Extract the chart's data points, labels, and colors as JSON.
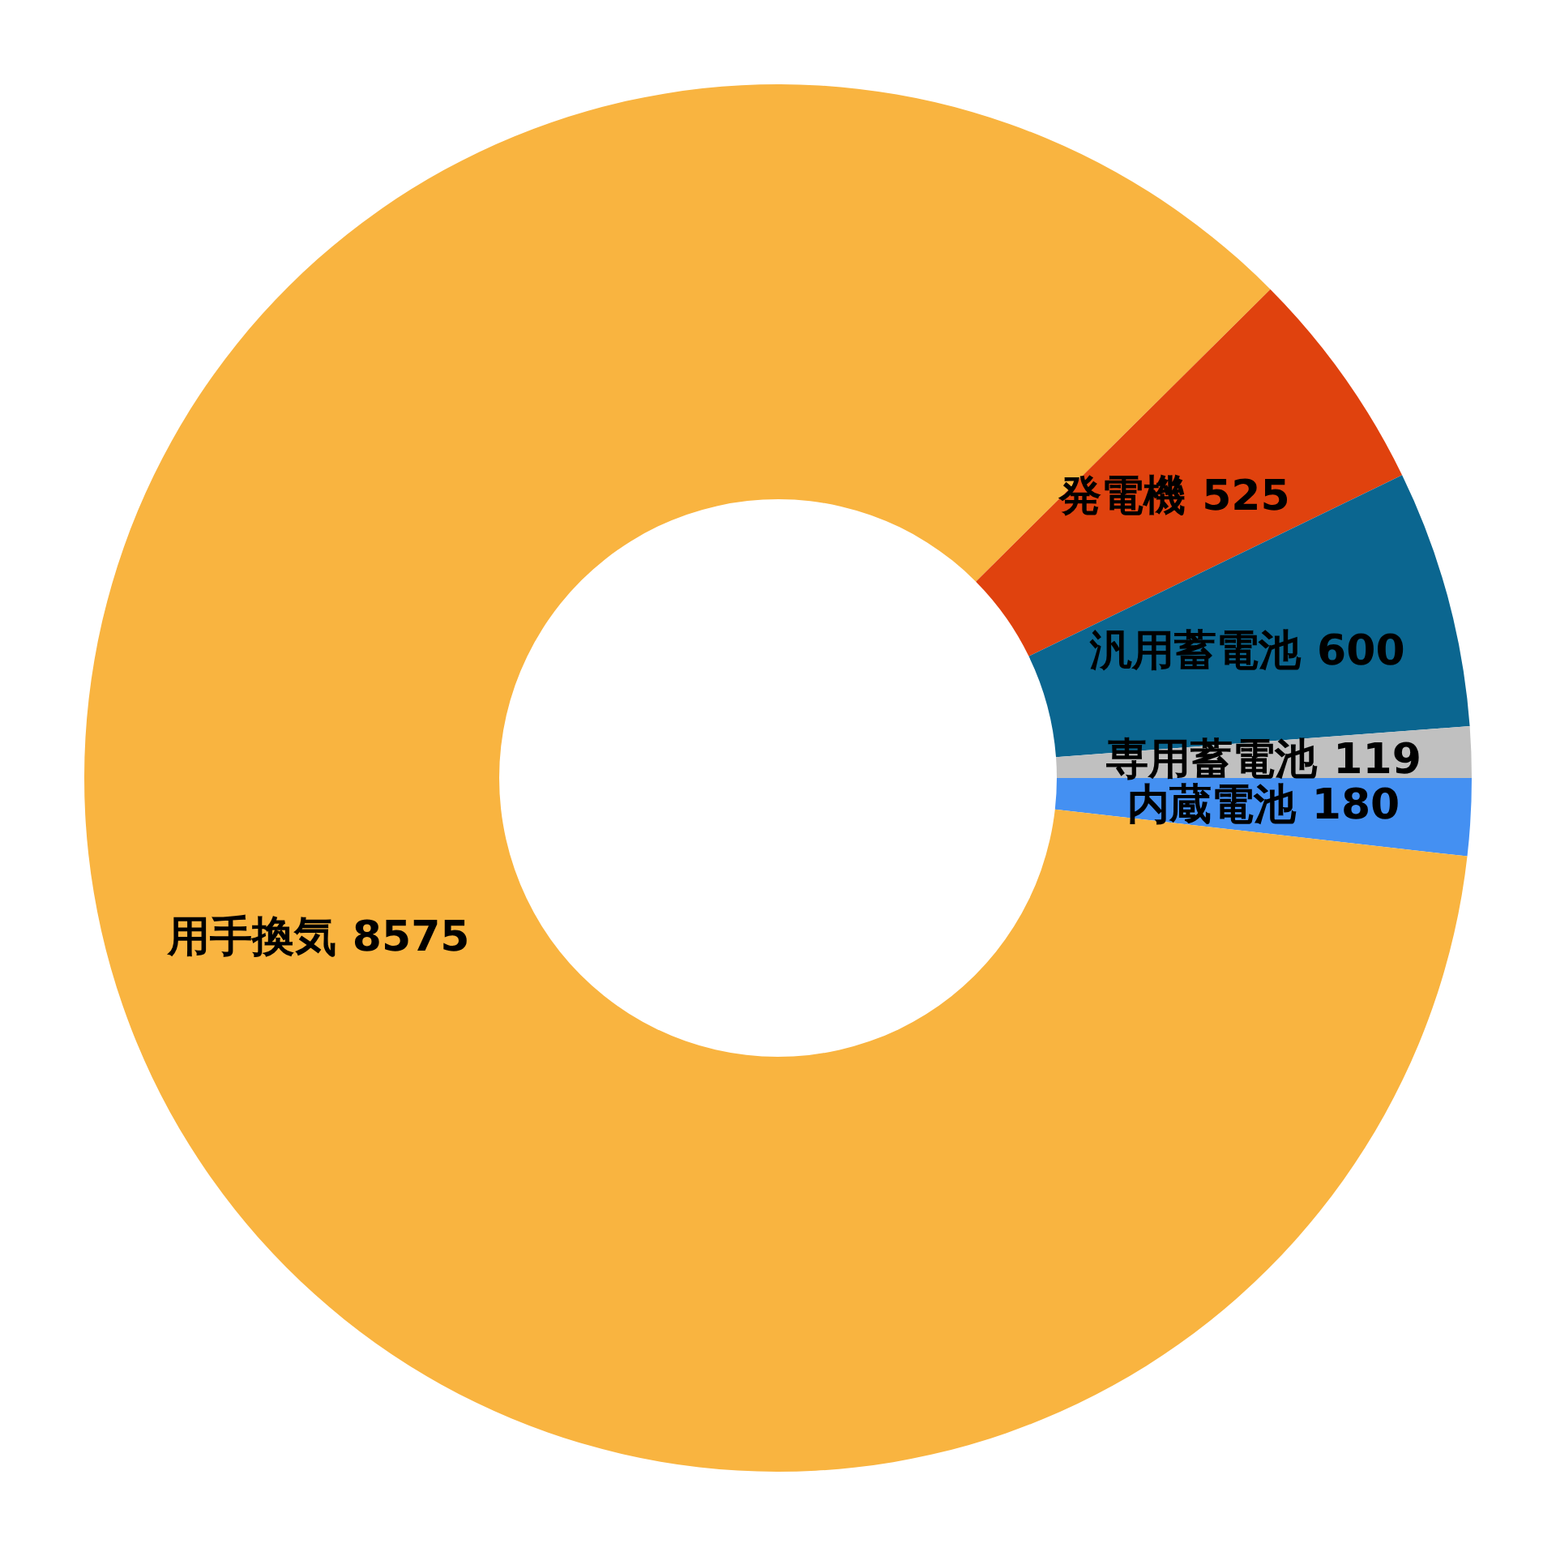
{
  "chart_data": {
    "type": "donut",
    "categories": [
      "内蔵電池",
      "用手換気",
      "発電機",
      "汎用蓄電池",
      "専用蓄電池"
    ],
    "values": [
      180,
      8575,
      525,
      600,
      119
    ],
    "colors": [
      "#4490f2",
      "#f9b440",
      "#e0420e",
      "#0b6690",
      "#c0c0c0"
    ],
    "data_labels": true
  }
}
